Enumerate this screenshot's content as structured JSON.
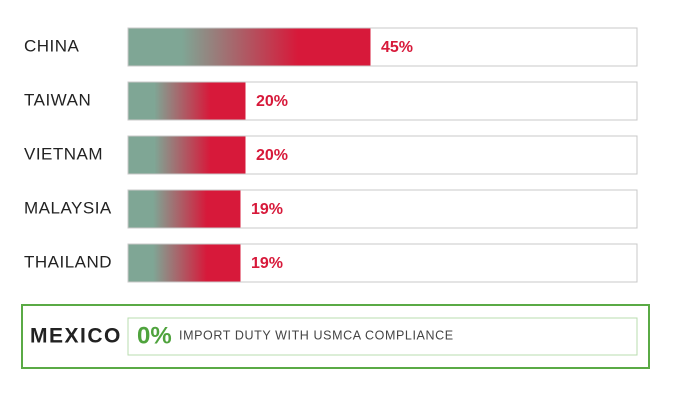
{
  "chart_data": {
    "type": "bar",
    "orientation": "horizontal",
    "categories": [
      "CHINA",
      "TAIWAN",
      "VIETNAM",
      "MALAYSIA",
      "THAILAND"
    ],
    "values": [
      45,
      20,
      20,
      19,
      19
    ],
    "value_labels": [
      "45%",
      "20%",
      "20%",
      "19%",
      "19%"
    ],
    "color": "#d7193a",
    "gradient_start_color": "#7fa695",
    "highlight": {
      "label": "MEXICO",
      "value": 0,
      "value_label": "0%",
      "text": "IMPORT DUTY WITH USMCA COMPLIANCE",
      "color": "#4fa33d"
    }
  }
}
